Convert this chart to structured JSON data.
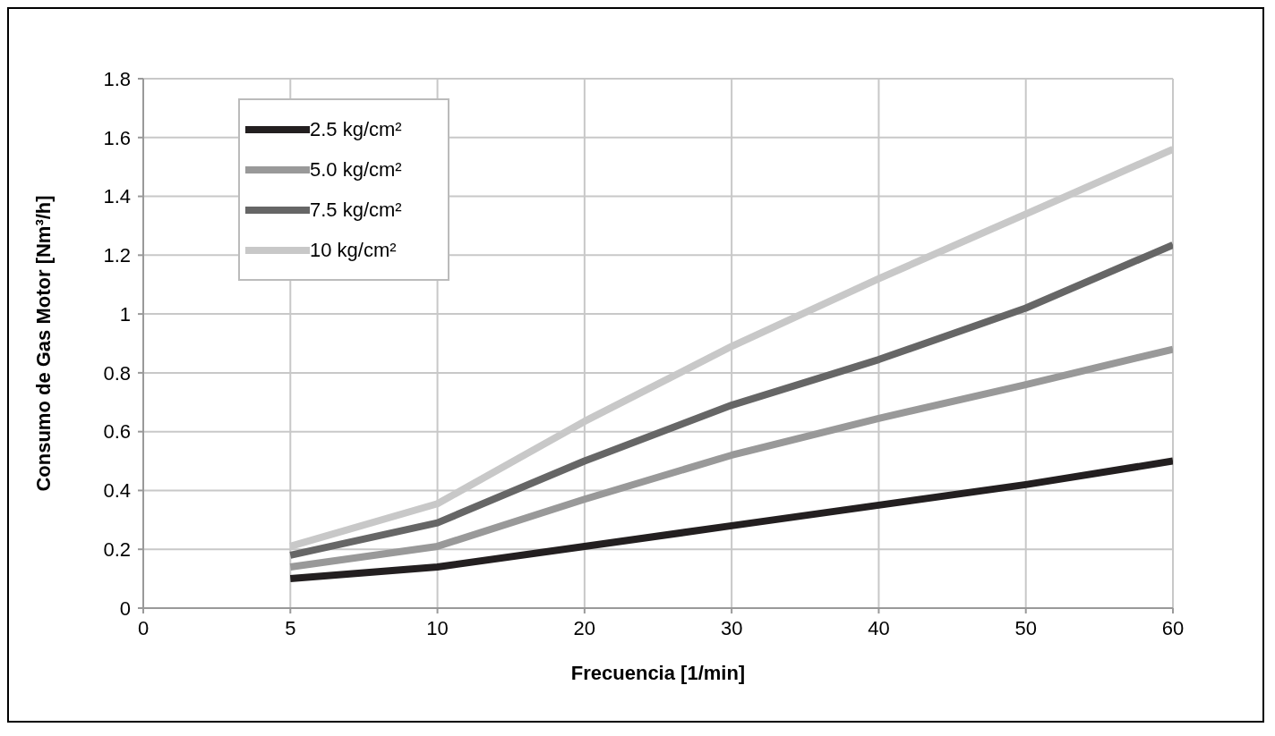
{
  "chart_data": {
    "type": "line",
    "xlabel": "Frecuencia [1/min]",
    "ylabel": "Consumo de  Gas Motor [Nm³/h]",
    "categories": [
      "0",
      "5",
      "10",
      "20",
      "30",
      "40",
      "50",
      "60"
    ],
    "series": [
      {
        "name": "2.5 kg/cm²",
        "color": "#231f20",
        "values": [
          null,
          0.1,
          0.14,
          0.21,
          0.28,
          0.35,
          0.42,
          0.5
        ]
      },
      {
        "name": "5.0 kg/cm²",
        "color": "#999999",
        "values": [
          null,
          0.14,
          0.21,
          0.37,
          0.52,
          0.645,
          0.76,
          0.88
        ]
      },
      {
        "name": "7.5 kg/cm²",
        "color": "#666666",
        "values": [
          null,
          0.18,
          0.29,
          0.5,
          0.69,
          0.845,
          1.02,
          1.235
        ]
      },
      {
        "name": "10 kg/cm²",
        "color": "#c8c8c8",
        "values": [
          null,
          0.21,
          0.355,
          0.635,
          0.89,
          1.12,
          1.34,
          1.56
        ]
      }
    ],
    "ylim": [
      0,
      1.8
    ],
    "yticks": [
      0,
      0.2,
      0.4,
      0.6,
      0.8,
      1,
      1.2,
      1.4,
      1.6,
      1.8
    ],
    "grid": true,
    "legend": "top left",
    "marker": "none",
    "line_style": "solid"
  }
}
